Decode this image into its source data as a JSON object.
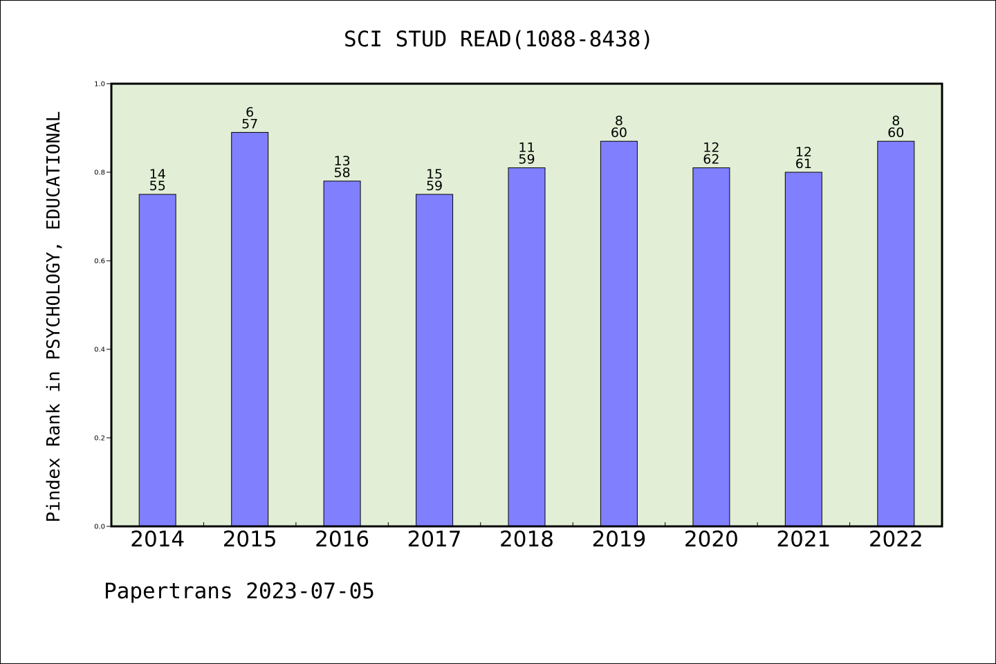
{
  "chart_data": {
    "type": "bar",
    "title": "SCI STUD READ(1088-8438)",
    "xlabel": "",
    "ylabel": "Pindex Rank in PSYCHOLOGY, EDUCATIONAL",
    "categories": [
      "2014",
      "2015",
      "2016",
      "2017",
      "2018",
      "2019",
      "2020",
      "2021",
      "2022"
    ],
    "values": [
      0.75,
      0.89,
      0.78,
      0.75,
      0.81,
      0.87,
      0.81,
      0.8,
      0.87
    ],
    "rank_labels": [
      "14",
      "6",
      "13",
      "15",
      "11",
      "8",
      "12",
      "12",
      "8"
    ],
    "total_labels": [
      "55",
      "57",
      "58",
      "59",
      "59",
      "60",
      "62",
      "61",
      "60"
    ],
    "ylim": [
      0,
      1.0
    ],
    "yticks": [
      "0.0",
      "0.2",
      "0.4",
      "0.6",
      "0.8",
      "1.0"
    ],
    "grid": false,
    "colors": {
      "bar_fill": "#8080ff",
      "plot_background": "#e2efd6",
      "axes": "#000000"
    }
  },
  "footer": {
    "credit": "Papertrans 2023-07-05"
  }
}
